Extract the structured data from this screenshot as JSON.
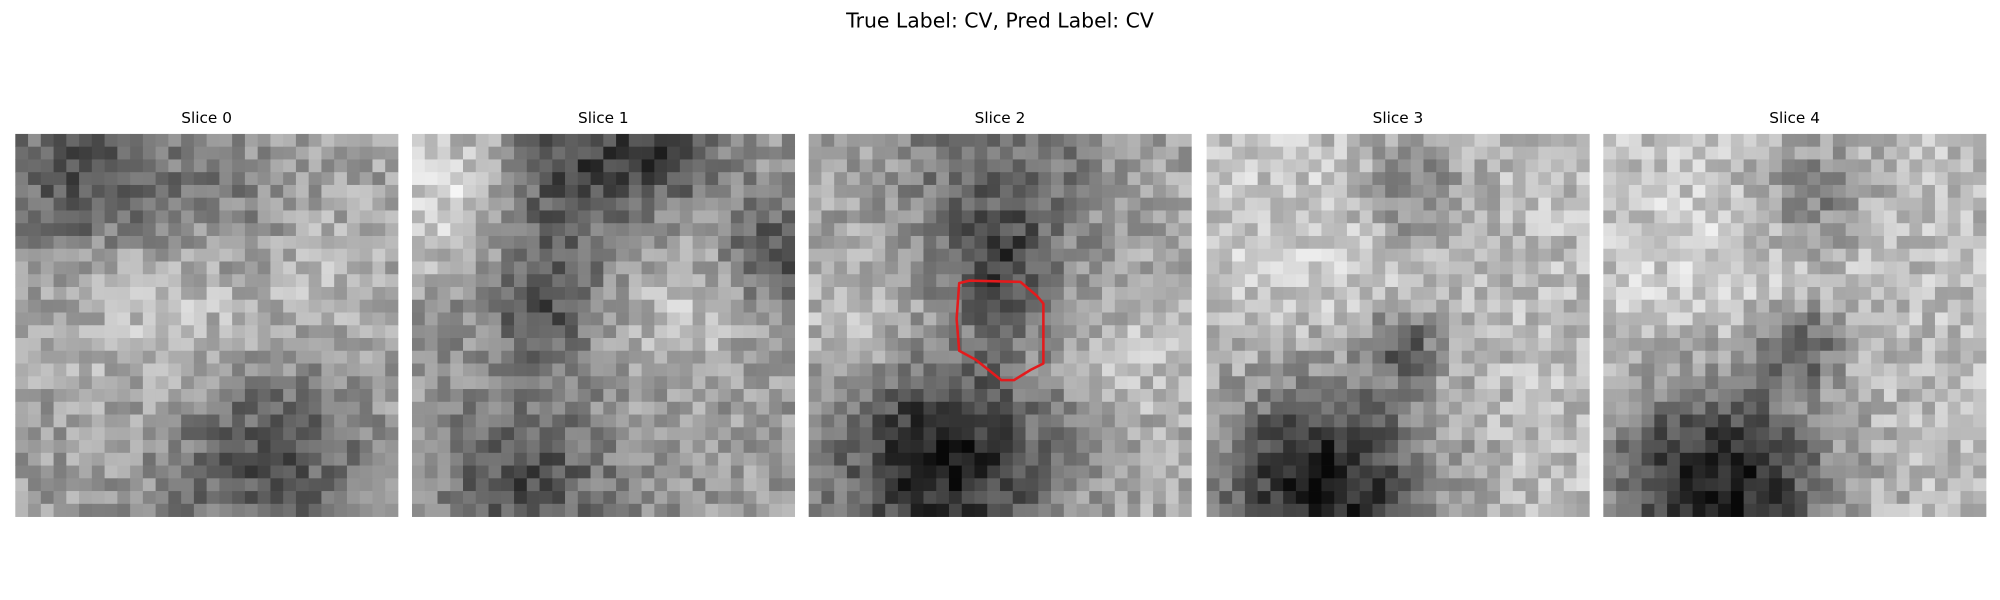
{
  "title": "True Label: CV, Pred Label: CV",
  "panels": [
    {
      "title": "Slice 0"
    },
    {
      "title": "Slice 1"
    },
    {
      "title": "Slice 2"
    },
    {
      "title": "Slice 3"
    },
    {
      "title": "Slice 4"
    }
  ]
}
